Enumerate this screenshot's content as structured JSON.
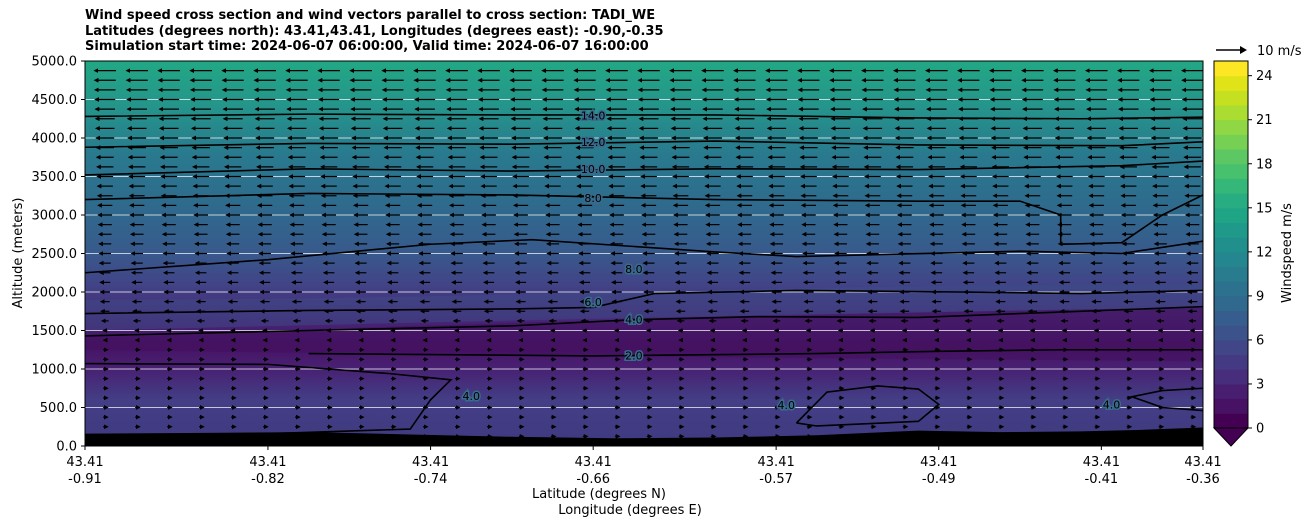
{
  "chart_data": {
    "type": "filled-contour",
    "title": "Wind speed cross section and wind vectors parallel to cross section: TADI_WE",
    "subtitle_lines": [
      "Latitudes (degrees north): 43.41,43.41, Longitudes (degrees east): -0.90,-0.35",
      "Simulation start time: 2024-06-07 06:00:00, Valid time: 2024-06-07 16:00:00"
    ],
    "ylabel": "Altitude (meters)",
    "xlabel_lat": "Latitude (degrees N)",
    "xlabel_lon": "Longitude (degrees E)",
    "ylim": [
      0,
      5000
    ],
    "xlim": [
      -0.91,
      -0.36
    ],
    "y_ticks": [
      0,
      500,
      1000,
      1500,
      2000,
      2500,
      3000,
      3500,
      4000,
      4500,
      5000
    ],
    "y_tick_labels": [
      "0.0",
      "500.0",
      "1000.0",
      "1500.0",
      "2000.0",
      "2500.0",
      "3000.0",
      "3500.0",
      "4000.0",
      "4500.0",
      "5000.0"
    ],
    "x_ticks": [
      {
        "lon": -0.91,
        "lat_label": "43.41",
        "lon_label": "-0.91"
      },
      {
        "lon": -0.82,
        "lat_label": "43.41",
        "lon_label": "-0.82"
      },
      {
        "lon": -0.74,
        "lat_label": "43.41",
        "lon_label": "-0.74"
      },
      {
        "lon": -0.66,
        "lat_label": "43.41",
        "lon_label": "-0.66"
      },
      {
        "lon": -0.57,
        "lat_label": "43.41",
        "lon_label": "-0.57"
      },
      {
        "lon": -0.49,
        "lat_label": "43.41",
        "lon_label": "-0.49"
      },
      {
        "lon": -0.41,
        "lat_label": "43.41",
        "lon_label": "-0.41"
      },
      {
        "lon": -0.36,
        "lat_label": "43.41",
        "lon_label": "-0.36"
      }
    ],
    "colorbar": {
      "label": "Windspeed m/s",
      "min": 0,
      "max": 25,
      "ticks": [
        0,
        3,
        6,
        9,
        12,
        15,
        18,
        21,
        24
      ],
      "extend": "min"
    },
    "reference_vector": {
      "value": 10,
      "label": "10 m/s"
    },
    "contours": [
      {
        "level": 2,
        "label": "2.0",
        "points": [
          [
            -0.8,
            1200
          ],
          [
            -0.66,
            1170
          ],
          [
            -0.55,
            1200
          ],
          [
            -0.49,
            1230
          ],
          [
            -0.43,
            1250
          ],
          [
            -0.36,
            1250
          ]
        ],
        "label_at": [
          -0.64,
          1175
        ]
      },
      {
        "level": 4,
        "label": "4.0",
        "points": [
          [
            -0.91,
            1430
          ],
          [
            -0.8,
            1500
          ],
          [
            -0.7,
            1560
          ],
          [
            -0.64,
            1640
          ],
          [
            -0.58,
            1680
          ],
          [
            -0.5,
            1670
          ],
          [
            -0.43,
            1740
          ],
          [
            -0.36,
            1810
          ]
        ],
        "label_at": [
          -0.64,
          1645
        ]
      },
      {
        "level": 4,
        "label": "4.0",
        "points": [
          [
            -0.82,
            160
          ],
          [
            -0.75,
            220
          ],
          [
            -0.74,
            600
          ],
          [
            -0.73,
            860
          ],
          [
            -0.76,
            940
          ],
          [
            -0.82,
            1060
          ],
          [
            -0.91,
            1070
          ]
        ],
        "label_at": [
          -0.72,
          650
        ]
      },
      {
        "level": 4,
        "label": "4.0",
        "points": [
          [
            -0.56,
            300
          ],
          [
            -0.545,
            700
          ],
          [
            -0.52,
            780
          ],
          [
            -0.5,
            740
          ],
          [
            -0.49,
            540
          ],
          [
            -0.5,
            320
          ],
          [
            -0.55,
            260
          ],
          [
            -0.56,
            300
          ]
        ],
        "label_at": [
          -0.565,
          530
        ]
      },
      {
        "level": 4,
        "label": "4.0",
        "points": [
          [
            -0.36,
            750
          ],
          [
            -0.38,
            720
          ],
          [
            -0.395,
            640
          ],
          [
            -0.38,
            500
          ],
          [
            -0.36,
            460
          ]
        ],
        "label_at": [
          -0.405,
          540
        ]
      },
      {
        "level": 6,
        "label": "6.0",
        "points": [
          [
            -0.91,
            1720
          ],
          [
            -0.8,
            1760
          ],
          [
            -0.7,
            1780
          ],
          [
            -0.66,
            1800
          ],
          [
            -0.63,
            1980
          ],
          [
            -0.56,
            2020
          ],
          [
            -0.48,
            2000
          ],
          [
            -0.42,
            1980
          ],
          [
            -0.36,
            2020
          ]
        ],
        "label_at": [
          -0.66,
          1870
        ]
      },
      {
        "level": 8,
        "label": "8.0",
        "points": [
          [
            -0.91,
            2250
          ],
          [
            -0.82,
            2420
          ],
          [
            -0.74,
            2620
          ],
          [
            -0.69,
            2680
          ],
          [
            -0.6,
            2520
          ],
          [
            -0.56,
            2460
          ],
          [
            -0.45,
            2530
          ],
          [
            -0.4,
            2500
          ],
          [
            -0.36,
            2660
          ]
        ],
        "label_at": [
          -0.64,
          2300
        ]
      },
      {
        "level": 8,
        "label": "8.0",
        "points": [
          [
            -0.91,
            3200
          ],
          [
            -0.8,
            3280
          ],
          [
            -0.7,
            3260
          ],
          [
            -0.6,
            3200
          ],
          [
            -0.5,
            3180
          ],
          [
            -0.45,
            3180
          ],
          [
            -0.43,
            3000
          ],
          [
            -0.43,
            2620
          ],
          [
            -0.4,
            2640
          ],
          [
            -0.38,
            3000
          ],
          [
            -0.36,
            3260
          ]
        ],
        "label_at": [
          -0.66,
          3220
        ]
      },
      {
        "level": 10,
        "label": "10.0",
        "points": [
          [
            -0.91,
            3520
          ],
          [
            -0.8,
            3600
          ],
          [
            -0.7,
            3570
          ],
          [
            -0.6,
            3600
          ],
          [
            -0.5,
            3590
          ],
          [
            -0.4,
            3640
          ],
          [
            -0.36,
            3700
          ]
        ],
        "label_at": [
          -0.66,
          3600
        ]
      },
      {
        "level": 12,
        "label": "12.0",
        "points": [
          [
            -0.91,
            3880
          ],
          [
            -0.8,
            3930
          ],
          [
            -0.7,
            3920
          ],
          [
            -0.6,
            3960
          ],
          [
            -0.5,
            3910
          ],
          [
            -0.4,
            3900
          ],
          [
            -0.36,
            3950
          ]
        ],
        "label_at": [
          -0.66,
          3950
        ]
      },
      {
        "level": 14,
        "label": "14.0",
        "points": [
          [
            -0.91,
            4280
          ],
          [
            -0.8,
            4310
          ],
          [
            -0.7,
            4300
          ],
          [
            -0.6,
            4300
          ],
          [
            -0.5,
            4260
          ],
          [
            -0.42,
            4250
          ],
          [
            -0.36,
            4270
          ]
        ],
        "label_at": [
          -0.66,
          4290
        ]
      }
    ]
  }
}
